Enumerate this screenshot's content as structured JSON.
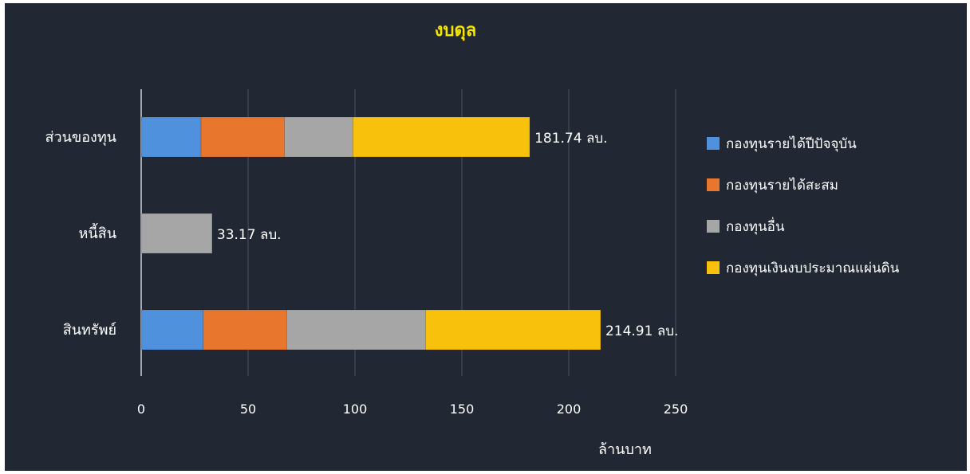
{
  "chart_data": {
    "type": "bar",
    "orientation": "horizontal",
    "stacked": true,
    "title": "งบดุล",
    "xlabel": "ล้านบาท",
    "ylabel": "",
    "xlim": [
      0,
      250
    ],
    "x_ticks": [
      0,
      50,
      100,
      150,
      200,
      250
    ],
    "grid": true,
    "legend_position": "right",
    "categories": [
      "ส่วนของทุน",
      "หนี้สิน",
      "สินทรัพย์"
    ],
    "series": [
      {
        "name": "กองทุนรายได้ปีปัจจุบัน",
        "color": "#4f91dd",
        "values": [
          28,
          0,
          29
        ]
      },
      {
        "name": "กองทุนรายได้สะสม",
        "color": "#e8762c",
        "values": [
          39,
          0,
          39
        ]
      },
      {
        "name": "กองทุนอื่น",
        "color": "#a6a6a6",
        "values": [
          32,
          33.17,
          65
        ]
      },
      {
        "name": "กองทุนเงินงบประมาณแผ่นดิน",
        "color": "#f7c10c",
        "values": [
          82.74,
          0,
          81.91
        ]
      }
    ],
    "totals": [
      "181.74 ลบ.",
      "33.17 ลบ.",
      "214.91 ลบ."
    ]
  }
}
